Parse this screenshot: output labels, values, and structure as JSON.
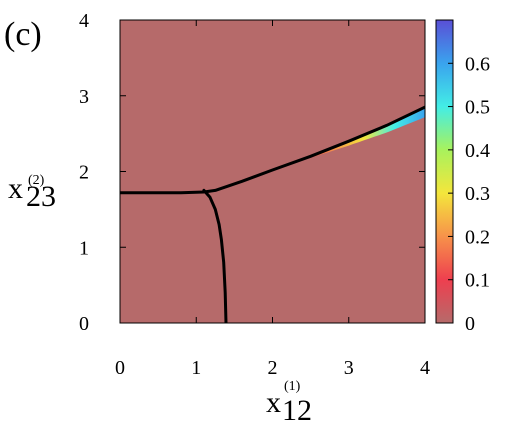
{
  "panel_label": "(c)",
  "chart_data": {
    "type": "heatmap",
    "title": "",
    "xlabel": {
      "main": "x",
      "sup": "(1)",
      "sub": "12"
    },
    "ylabel": {
      "main": "x",
      "sup": "(2)",
      "sub": "23"
    },
    "xlim": [
      0,
      4
    ],
    "ylim": [
      0,
      4
    ],
    "x_ticks": [
      0,
      1,
      2,
      3,
      4
    ],
    "y_ticks": [
      0,
      1,
      2,
      3,
      4
    ],
    "grid": false,
    "background_value": 0,
    "colorbar": {
      "range": [
        0,
        0.7
      ],
      "ticks": [
        0,
        0.1,
        0.2,
        0.3,
        0.4,
        0.5,
        0.6
      ],
      "placement": "right",
      "stops": [
        "#b66a6a",
        "#ee3f4f",
        "#f7924a",
        "#f4e63c",
        "#a8f25d",
        "#43ede6",
        "#3aa3ee",
        "#5a4fd6"
      ]
    },
    "boundary_curves": [
      {
        "x": [
          0,
          0.4,
          0.8,
          1.1,
          1.25,
          1.6,
          2.0,
          2.5,
          3.0,
          3.5,
          4.0
        ],
        "y": [
          1.72,
          1.72,
          1.72,
          1.73,
          1.75,
          1.87,
          2.02,
          2.2,
          2.4,
          2.61,
          2.85
        ]
      },
      {
        "x": [
          1.1,
          1.18,
          1.25,
          1.3,
          1.33,
          1.36,
          1.38,
          1.39
        ],
        "y": [
          1.75,
          1.66,
          1.5,
          1.3,
          1.1,
          0.8,
          0.4,
          0.0
        ]
      }
    ],
    "hot_band": {
      "x": [
        2.4,
        2.8,
        3.2,
        3.6,
        4.0
      ],
      "values": [
        0.05,
        0.15,
        0.3,
        0.45,
        0.6
      ]
    }
  }
}
